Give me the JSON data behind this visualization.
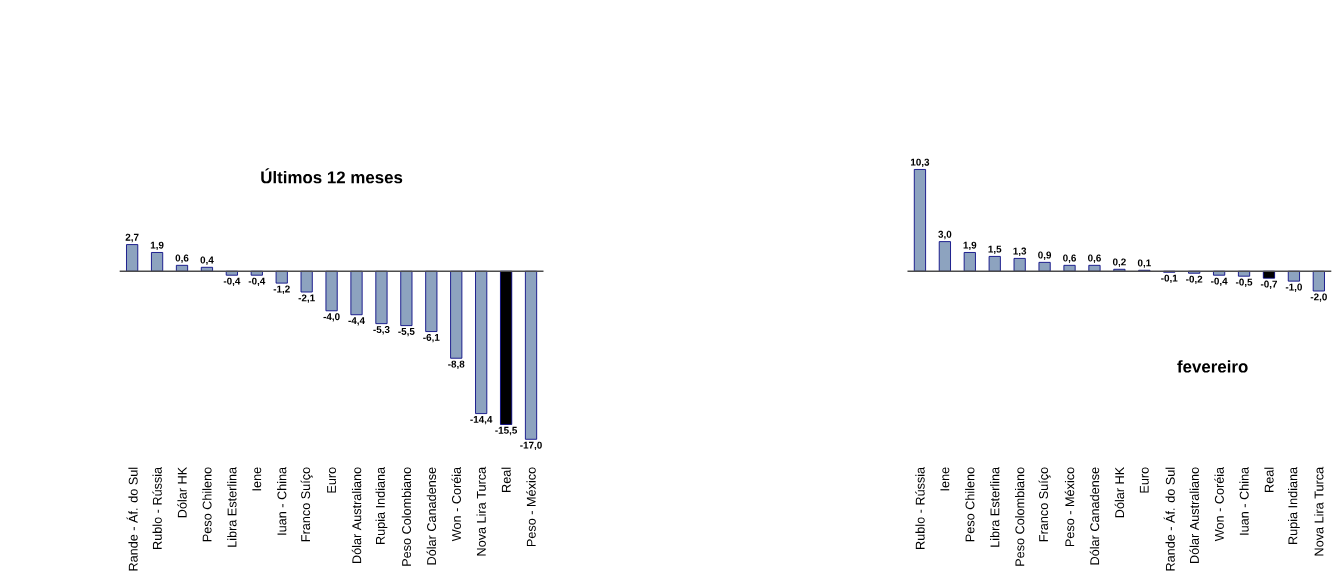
{
  "chart_data": [
    {
      "type": "bar",
      "title": "Últimos 12 meses",
      "categories": [
        "Rande - Áf. do Sul",
        "Rublo - Rússia",
        "Dólar HK",
        "Peso Chileno",
        "Libra Esterlina",
        "Iene",
        "Iuan - China",
        "Franco Suíço",
        "Euro",
        "Dólar Australiano",
        "Rupia Indiana",
        "Peso Colombiano",
        "Dólar Canadense",
        "Won - Coréia",
        "Nova Lira Turca",
        "Real",
        "Peso - México"
      ],
      "values": [
        2.7,
        1.9,
        0.6,
        0.4,
        -0.4,
        -0.4,
        -1.2,
        -2.1,
        -4.0,
        -4.4,
        -5.3,
        -5.5,
        -6.1,
        -8.8,
        -14.4,
        -15.5,
        -17.0
      ],
      "value_labels": [
        "2,7",
        "1,9",
        "0,6",
        "0,4",
        "-0,4",
        "-0,4",
        "-1,2",
        "-2,1",
        "-4,0",
        "-4,4",
        "-5,3",
        "-5,5",
        "-6,1",
        "-8,8",
        "-14,4",
        "-15,5",
        "-17,0"
      ],
      "colors": [
        "#8da3bf",
        "#8da3bf",
        "#8da3bf",
        "#8da3bf",
        "#8da3bf",
        "#8da3bf",
        "#8da3bf",
        "#8da3bf",
        "#8da3bf",
        "#8da3bf",
        "#8da3bf",
        "#8da3bf",
        "#8da3bf",
        "#8da3bf",
        "#8da3bf",
        "#000000",
        "#8da3bf"
      ]
    },
    {
      "type": "bar",
      "title": "fevereiro",
      "categories": [
        "Rublo - Rússia",
        "Iene",
        "Peso Chileno",
        "Libra Esterlina",
        "Peso Colombiano",
        "Franco Suíço",
        "Peso - México",
        "Dólar Canadense",
        "Dólar HK",
        "Euro",
        "Rande - Áf. do Sul",
        "Dólar Australiano",
        "Won - Coréia",
        "Iuan - China",
        "Real",
        "Rupia Indiana",
        "Nova Lira Turca"
      ],
      "values": [
        10.3,
        3.0,
        1.9,
        1.5,
        1.3,
        0.9,
        0.6,
        0.6,
        0.2,
        0.1,
        -0.1,
        -0.2,
        -0.4,
        -0.5,
        -0.7,
        -1.0,
        -2.0
      ],
      "value_labels": [
        "10,3",
        "3,0",
        "1,9",
        "1,5",
        "1,3",
        "0,9",
        "0,6",
        "0,6",
        "0,2",
        "0,1",
        "-0,1",
        "-0,2",
        "-0,4",
        "-0,5",
        "-0,7",
        "-1,0",
        "-2,0"
      ],
      "colors": [
        "#8da3bf",
        "#8da3bf",
        "#8da3bf",
        "#8da3bf",
        "#8da3bf",
        "#8da3bf",
        "#8da3bf",
        "#8da3bf",
        "#8da3bf",
        "#8da3bf",
        "#8da3bf",
        "#8da3bf",
        "#8da3bf",
        "#8da3bf",
        "#000000",
        "#8da3bf",
        "#8da3bf"
      ]
    }
  ]
}
